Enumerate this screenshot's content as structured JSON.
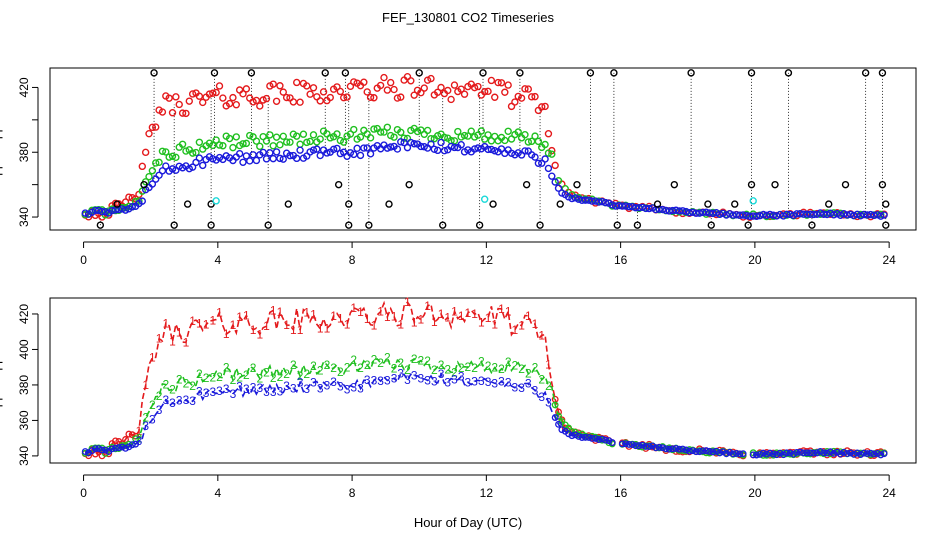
{
  "figure": {
    "title": "FEF_130801  CO2 Timeseries",
    "xlabel": "Hour of Day (UTC)"
  },
  "colors": {
    "series1": "#e41a1c",
    "series2": "#1fbf1f",
    "series3": "#1a1adb",
    "outlier": "#000000",
    "cyan": "#19d9d9"
  },
  "chart_data": [
    {
      "type": "scatter",
      "ylabel": "approx. ppm",
      "xlim": [
        -1,
        24.8
      ],
      "ylim": [
        332,
        432
      ],
      "xticks": [
        0,
        4,
        8,
        12,
        16,
        20,
        24
      ],
      "yticks": [
        340,
        360,
        380,
        400,
        420
      ],
      "ytick_labels": [
        "340",
        "",
        "380",
        "",
        "420"
      ],
      "outlier_markers": {
        "top": [
          2.1,
          3.9,
          5.0,
          7.2,
          7.8,
          10.0,
          11.9,
          13.0,
          15.1,
          15.8,
          18.1,
          19.9,
          21.0,
          23.3,
          23.8
        ],
        "bottom": [
          0.5,
          2.7,
          3.8,
          5.5,
          7.9,
          8.5,
          10.7,
          11.8,
          13.6,
          15.9,
          16.5,
          18.7,
          19.8,
          21.7,
          23.9
        ],
        "mid": [
          [
            1.0,
            348
          ],
          [
            1.8,
            360
          ],
          [
            3.1,
            348
          ],
          [
            3.8,
            348
          ],
          [
            6.1,
            348
          ],
          [
            7.6,
            360
          ],
          [
            7.9,
            348
          ],
          [
            9.1,
            348
          ],
          [
            9.7,
            360
          ],
          [
            12.2,
            348
          ],
          [
            13.2,
            360
          ],
          [
            14.2,
            348
          ],
          [
            14.7,
            360
          ],
          [
            17.1,
            348
          ],
          [
            17.6,
            360
          ],
          [
            18.6,
            348
          ],
          [
            19.4,
            348
          ],
          [
            19.9,
            360
          ],
          [
            20.6,
            360
          ],
          [
            22.2,
            348
          ],
          [
            22.7,
            360
          ],
          [
            23.8,
            360
          ],
          [
            23.9,
            348
          ]
        ]
      },
      "cyan_points": [
        [
          3.95,
          350
        ],
        [
          11.95,
          351
        ],
        [
          19.95,
          350
        ]
      ]
    },
    {
      "type": "line",
      "ylabel": "approx. ppm",
      "xlim": [
        -1,
        24.8
      ],
      "ylim": [
        336,
        429
      ],
      "xticks": [
        0,
        4,
        8,
        12,
        16,
        20,
        24
      ],
      "yticks": [
        340,
        360,
        380,
        400,
        420
      ],
      "ytick_labels": [
        "340",
        "360",
        "380",
        "400",
        "420"
      ],
      "series": [
        {
          "label_char": "1"
        },
        {
          "label_char": "2"
        },
        {
          "label_char": "3"
        }
      ],
      "gaps": [
        [
          15.8,
          16.05
        ],
        [
          19.65,
          19.95
        ]
      ]
    }
  ],
  "profile": {
    "hours": [
      0,
      0.4,
      0.8,
      1.1,
      1.3,
      1.5,
      1.6,
      1.8,
      2.0,
      2.3,
      4.0,
      8.0,
      9.5,
      12.0,
      13.3,
      13.8,
      14.0,
      14.2,
      14.5,
      15.0,
      15.5,
      15.8,
      16.05,
      17.0,
      18.0,
      19.0,
      19.65,
      19.95,
      20.5,
      22.0,
      23.8
    ],
    "series1": [
      343,
      343,
      344,
      346,
      349,
      352,
      356,
      368,
      392,
      408,
      414,
      418,
      420,
      419,
      412,
      405,
      376,
      360,
      354,
      351,
      349,
      347,
      347,
      345,
      343,
      342,
      341,
      341,
      341,
      342,
      341
    ],
    "series2": [
      343,
      343,
      343,
      344,
      345,
      347,
      350,
      358,
      370,
      378,
      386,
      390,
      392,
      390,
      388,
      384,
      372,
      360,
      354,
      351,
      349,
      347,
      347,
      345,
      343,
      342,
      341,
      341,
      341,
      342,
      341
    ],
    "series3": [
      343,
      343,
      343,
      344,
      345,
      346,
      348,
      353,
      360,
      368,
      376,
      380,
      384,
      382,
      378,
      374,
      364,
      356,
      352,
      350,
      349,
      347,
      347,
      345,
      343,
      342,
      341,
      341,
      341,
      342,
      341
    ]
  }
}
